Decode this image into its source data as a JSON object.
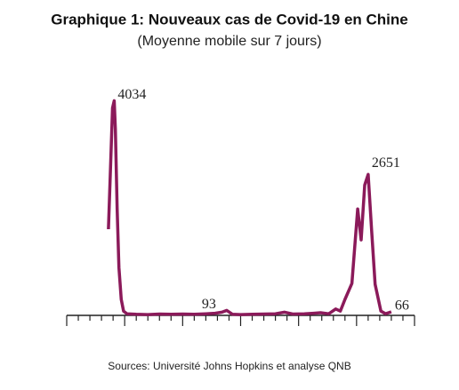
{
  "chart_data": {
    "type": "line",
    "title": "Graphique 1: Nouveaux cas de Covid-19 en Chine",
    "subtitle": "(Moyenne mobile sur 7 jours)",
    "source": "Sources: Université Johns Hopkins et analyse QNB",
    "x": [
      3.6,
      3.8,
      3.95,
      4.1,
      4.2,
      4.35,
      4.5,
      4.7,
      4.9,
      5.2,
      6,
      7,
      8,
      9,
      10,
      11,
      12,
      12.8,
      13.4,
      13.8,
      14.3,
      15,
      16,
      17,
      18,
      18.8,
      19.5,
      20.5,
      21.3,
      21.9,
      22.6,
      23.2,
      23.6,
      24,
      24.6,
      25.1,
      25.4,
      25.7,
      26.0,
      26.3,
      26.6,
      27.1,
      27.5,
      28.0
    ],
    "series": [
      {
        "name": "Nouveaux cas",
        "color": "#8b1a5a",
        "values": [
          1620,
          2900,
          3900,
          4034,
          3500,
          2000,
          900,
          300,
          80,
          30,
          20,
          15,
          25,
          20,
          25,
          20,
          30,
          40,
          60,
          93,
          20,
          15,
          20,
          25,
          30,
          60,
          25,
          30,
          40,
          50,
          30,
          120,
          80,
          300,
          600,
          2000,
          1420,
          2450,
          2651,
          1590,
          585,
          80,
          30,
          66
        ]
      }
    ],
    "annotations": [
      {
        "x": 4.1,
        "y": 4034
      },
      {
        "x": 13.8,
        "y": 93
      },
      {
        "x": 26.0,
        "y": 2651
      },
      {
        "x": 28.0,
        "y": 66
      }
    ],
    "xlim": [
      0,
      30
    ],
    "xticks": [
      0,
      1,
      2,
      3,
      4,
      5,
      6,
      7,
      8,
      9,
      10,
      11,
      12,
      13,
      14,
      15,
      16,
      17,
      18,
      19,
      20,
      21,
      22,
      23,
      24,
      25,
      26,
      27,
      28,
      29,
      30
    ],
    "ylim": [
      0,
      4200
    ]
  }
}
